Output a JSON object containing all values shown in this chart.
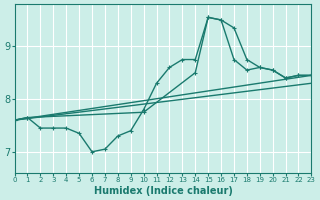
{
  "xlabel": "Humidex (Indice chaleur)",
  "background_color": "#cceee8",
  "grid_color": "#ffffff",
  "line_color": "#1a7a6e",
  "xlim": [
    0,
    23
  ],
  "ylim": [
    6.6,
    9.8
  ],
  "yticks": [
    7,
    8,
    9
  ],
  "xticks": [
    0,
    1,
    2,
    3,
    4,
    5,
    6,
    7,
    8,
    9,
    10,
    11,
    12,
    13,
    14,
    15,
    16,
    17,
    18,
    19,
    20,
    21,
    22,
    23
  ],
  "series": [
    {
      "x": [
        0,
        1,
        2,
        3,
        4,
        5,
        6,
        7,
        8,
        9,
        10,
        11,
        12,
        13,
        14,
        15,
        16,
        17,
        18,
        19,
        20,
        21,
        22,
        23
      ],
      "y": [
        7.6,
        7.65,
        7.45,
        7.45,
        7.45,
        7.35,
        7.0,
        7.05,
        7.3,
        7.4,
        7.8,
        8.3,
        8.6,
        8.75,
        8.75,
        9.55,
        9.5,
        9.35,
        8.75,
        8.6,
        8.55,
        8.4,
        8.45,
        8.45
      ],
      "with_markers": true
    },
    {
      "x": [
        0,
        1,
        10,
        14,
        15,
        16,
        17,
        18,
        19,
        20,
        21,
        22,
        23
      ],
      "y": [
        7.6,
        7.65,
        7.75,
        8.5,
        9.55,
        9.5,
        8.75,
        8.55,
        8.6,
        8.55,
        8.4,
        8.45,
        8.45
      ],
      "with_markers": true
    },
    {
      "x": [
        0,
        23
      ],
      "y": [
        7.6,
        8.3
      ],
      "with_markers": false
    },
    {
      "x": [
        0,
        23
      ],
      "y": [
        7.6,
        8.45
      ],
      "with_markers": false
    }
  ]
}
